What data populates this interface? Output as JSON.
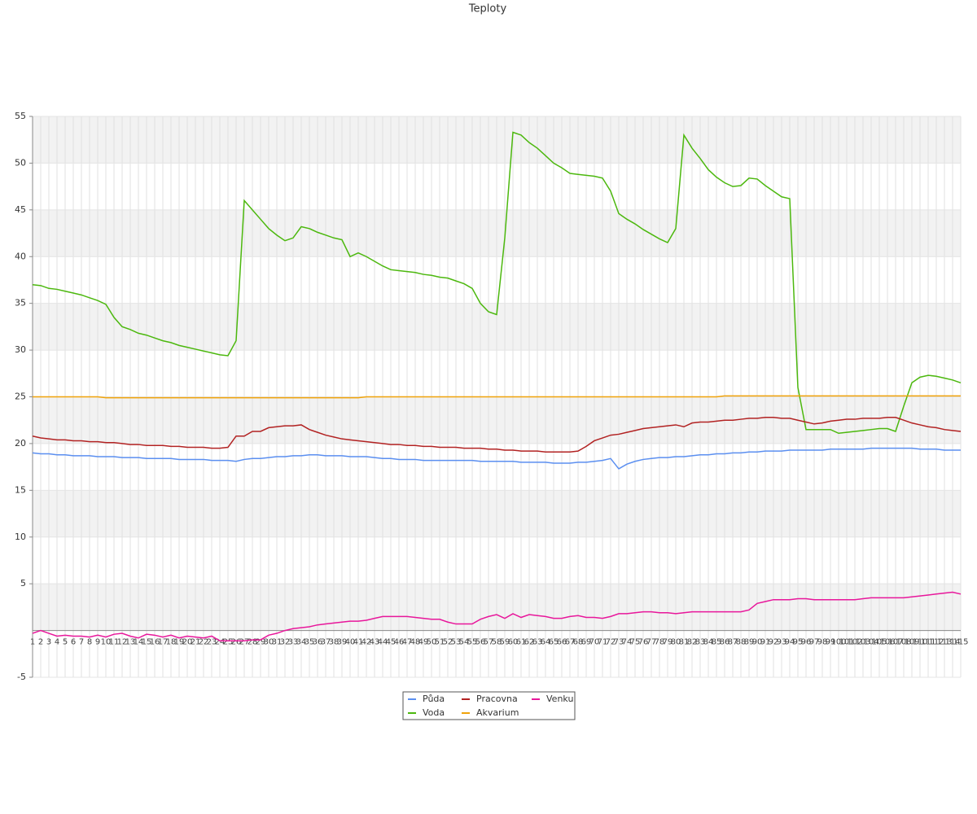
{
  "chart_data": {
    "type": "line",
    "title": "Teploty",
    "categories": [
      "1",
      "2",
      "3",
      "4",
      "5",
      "6",
      "7",
      "8",
      "9",
      "10",
      "11",
      "12",
      "13",
      "14",
      "15",
      "16",
      "17",
      "18",
      "19",
      "20",
      "21",
      "22",
      "23",
      "24",
      "25",
      "26",
      "27",
      "28",
      "29",
      "30",
      "31",
      "32",
      "33",
      "34",
      "35",
      "36",
      "37",
      "38",
      "39",
      "40",
      "41",
      "42",
      "43",
      "44",
      "45",
      "46",
      "47",
      "48",
      "49",
      "50",
      "51",
      "52",
      "53",
      "54",
      "55",
      "56",
      "57",
      "58",
      "59",
      "60",
      "61",
      "62",
      "63",
      "64",
      "65",
      "66",
      "67",
      "68",
      "69",
      "70",
      "71",
      "72",
      "73",
      "74",
      "75",
      "76",
      "77",
      "78",
      "79",
      "80",
      "81",
      "82",
      "83",
      "84",
      "85",
      "86",
      "87",
      "88",
      "89",
      "90",
      "91",
      "92",
      "93",
      "94",
      "95",
      "96",
      "97",
      "98",
      "99",
      "100",
      "101",
      "102",
      "103",
      "104",
      "105",
      "106",
      "107",
      "108",
      "109",
      "110",
      "111",
      "112",
      "113",
      "114",
      "115"
    ],
    "series": [
      {
        "name": "Půda",
        "color": "#5b8ff0",
        "values": [
          19.0,
          18.9,
          18.9,
          18.8,
          18.8,
          18.7,
          18.7,
          18.7,
          18.6,
          18.6,
          18.6,
          18.5,
          18.5,
          18.5,
          18.4,
          18.4,
          18.4,
          18.4,
          18.3,
          18.3,
          18.3,
          18.3,
          18.2,
          18.2,
          18.2,
          18.1,
          18.3,
          18.4,
          18.4,
          18.5,
          18.6,
          18.6,
          18.7,
          18.7,
          18.8,
          18.8,
          18.7,
          18.7,
          18.7,
          18.6,
          18.6,
          18.6,
          18.5,
          18.4,
          18.4,
          18.3,
          18.3,
          18.3,
          18.2,
          18.2,
          18.2,
          18.2,
          18.2,
          18.2,
          18.2,
          18.1,
          18.1,
          18.1,
          18.1,
          18.1,
          18.0,
          18.0,
          18.0,
          18.0,
          17.9,
          17.9,
          17.9,
          18.0,
          18.0,
          18.1,
          18.2,
          18.4,
          17.3,
          17.8,
          18.1,
          18.3,
          18.4,
          18.5,
          18.5,
          18.6,
          18.6,
          18.7,
          18.8,
          18.8,
          18.9,
          18.9,
          19.0,
          19.0,
          19.1,
          19.1,
          19.2,
          19.2,
          19.2,
          19.3,
          19.3,
          19.3,
          19.3,
          19.3,
          19.4,
          19.4,
          19.4,
          19.4,
          19.4,
          19.5,
          19.5,
          19.5,
          19.5,
          19.5,
          19.5,
          19.4,
          19.4,
          19.4,
          19.3,
          19.3,
          19.3
        ]
      },
      {
        "name": "Voda",
        "color": "#4cb80e",
        "values": [
          37,
          36.9,
          36.6,
          36.5,
          36.3,
          36.1,
          35.9,
          35.6,
          35.3,
          34.9,
          33.5,
          32.5,
          32.2,
          31.8,
          31.6,
          31.3,
          31,
          30.8,
          30.5,
          30.3,
          30.1,
          29.9,
          29.7,
          29.5,
          29.4,
          31,
          46,
          45,
          44,
          43,
          42.3,
          41.7,
          42,
          43.2,
          43,
          42.6,
          42.3,
          42,
          41.8,
          40,
          40.4,
          40,
          39.5,
          39,
          38.6,
          38.5,
          38.4,
          38.3,
          38.1,
          38,
          37.8,
          37.7,
          37.4,
          37.1,
          36.6,
          35,
          34.1,
          33.8,
          42,
          53.3,
          53,
          52.2,
          51.6,
          50.8,
          50,
          49.5,
          48.9,
          48.8,
          48.7,
          48.6,
          48.4,
          47,
          44.6,
          44,
          43.5,
          42.9,
          42.4,
          41.9,
          41.5,
          43,
          53,
          51.6,
          50.5,
          49.3,
          48.5,
          47.9,
          47.5,
          47.6,
          48.4,
          48.3,
          47.6,
          47,
          46.4,
          46.2,
          26,
          21.5,
          21.5,
          21.5,
          21.5,
          21.1,
          21.2,
          21.3,
          21.4,
          21.5,
          21.6,
          21.6,
          21.3,
          24,
          26.5,
          27.1,
          27.3,
          27.2,
          27,
          26.8,
          26.5
        ]
      },
      {
        "name": "Pracovna",
        "color": "#b22222",
        "values": [
          20.8,
          20.6,
          20.5,
          20.4,
          20.4,
          20.3,
          20.3,
          20.2,
          20.2,
          20.1,
          20.1,
          20.0,
          19.9,
          19.9,
          19.8,
          19.8,
          19.8,
          19.7,
          19.7,
          19.6,
          19.6,
          19.6,
          19.5,
          19.5,
          19.6,
          20.8,
          20.8,
          21.3,
          21.3,
          21.7,
          21.8,
          21.9,
          21.9,
          22.0,
          21.5,
          21.2,
          20.9,
          20.7,
          20.5,
          20.4,
          20.3,
          20.2,
          20.1,
          20.0,
          19.9,
          19.9,
          19.8,
          19.8,
          19.7,
          19.7,
          19.6,
          19.6,
          19.6,
          19.5,
          19.5,
          19.5,
          19.4,
          19.4,
          19.3,
          19.3,
          19.2,
          19.2,
          19.2,
          19.1,
          19.1,
          19.1,
          19.1,
          19.2,
          19.7,
          20.3,
          20.6,
          20.9,
          21.0,
          21.2,
          21.4,
          21.6,
          21.7,
          21.8,
          21.9,
          22.0,
          21.8,
          22.2,
          22.3,
          22.3,
          22.4,
          22.5,
          22.5,
          22.6,
          22.7,
          22.7,
          22.8,
          22.8,
          22.7,
          22.7,
          22.5,
          22.3,
          22.1,
          22.2,
          22.4,
          22.5,
          22.6,
          22.6,
          22.7,
          22.7,
          22.7,
          22.8,
          22.8,
          22.5,
          22.2,
          22.0,
          21.8,
          21.7,
          21.5,
          21.4,
          21.3
        ]
      },
      {
        "name": "Akvarium",
        "color": "#f0a30a",
        "values": [
          25,
          25,
          25,
          25,
          25,
          25,
          25,
          25,
          25,
          24.9,
          24.9,
          24.9,
          24.9,
          24.9,
          24.9,
          24.9,
          24.9,
          24.9,
          24.9,
          24.9,
          24.9,
          24.9,
          24.9,
          24.9,
          24.9,
          24.9,
          24.9,
          24.9,
          24.9,
          24.9,
          24.9,
          24.9,
          24.9,
          24.9,
          24.9,
          24.9,
          24.9,
          24.9,
          24.9,
          24.9,
          24.9,
          25,
          25,
          25,
          25,
          25,
          25,
          25,
          25,
          25,
          25,
          25,
          25,
          25,
          25,
          25,
          25,
          25,
          25,
          25,
          25,
          25,
          25,
          25,
          25,
          25,
          25,
          25,
          25,
          25,
          25,
          25,
          25,
          25,
          25,
          25,
          25,
          25,
          25,
          25,
          25,
          25,
          25,
          25,
          25,
          25.1,
          25.1,
          25.1,
          25.1,
          25.1,
          25.1,
          25.1,
          25.1,
          25.1,
          25.1,
          25.1,
          25.1,
          25.1,
          25.1,
          25.1,
          25.1,
          25.1,
          25.1,
          25.1,
          25.1,
          25.1,
          25.1,
          25.1,
          25.1,
          25.1,
          25.1,
          25.1,
          25.1,
          25.1,
          25.1
        ]
      },
      {
        "name": "Venku",
        "color": "#e8179b",
        "values": [
          -0.3,
          0,
          -0.3,
          -0.6,
          -0.5,
          -0.6,
          -0.6,
          -0.7,
          -0.5,
          -0.7,
          -0.4,
          -0.3,
          -0.6,
          -0.8,
          -0.4,
          -0.5,
          -0.7,
          -0.5,
          -0.8,
          -0.6,
          -0.7,
          -0.8,
          -0.6,
          -1.1,
          -1.1,
          -1.1,
          -1.1,
          -1.0,
          -1.0,
          -0.5,
          -0.3,
          0,
          0.2,
          0.3,
          0.4,
          0.6,
          0.7,
          0.8,
          0.9,
          1.0,
          1.0,
          1.1,
          1.3,
          1.5,
          1.5,
          1.5,
          1.5,
          1.4,
          1.3,
          1.2,
          1.2,
          0.9,
          0.7,
          0.7,
          0.7,
          1.2,
          1.5,
          1.7,
          1.3,
          1.8,
          1.4,
          1.7,
          1.6,
          1.5,
          1.3,
          1.3,
          1.5,
          1.6,
          1.4,
          1.4,
          1.3,
          1.5,
          1.8,
          1.8,
          1.9,
          2.0,
          2.0,
          1.9,
          1.9,
          1.8,
          1.9,
          2.0,
          2.0,
          2.0,
          2.0,
          2.0,
          2.0,
          2.0,
          2.2,
          2.9,
          3.1,
          3.3,
          3.3,
          3.3,
          3.4,
          3.4,
          3.3,
          3.3,
          3.3,
          3.3,
          3.3,
          3.3,
          3.4,
          3.5,
          3.5,
          3.5,
          3.5,
          3.5,
          3.6,
          3.7,
          3.8,
          3.9,
          4.0,
          4.1,
          3.9
        ]
      }
    ],
    "ylim": [
      -5,
      55
    ],
    "yticks": [
      -5,
      5,
      10,
      15,
      20,
      25,
      30,
      35,
      40,
      45,
      50,
      55
    ],
    "grid": true
  }
}
